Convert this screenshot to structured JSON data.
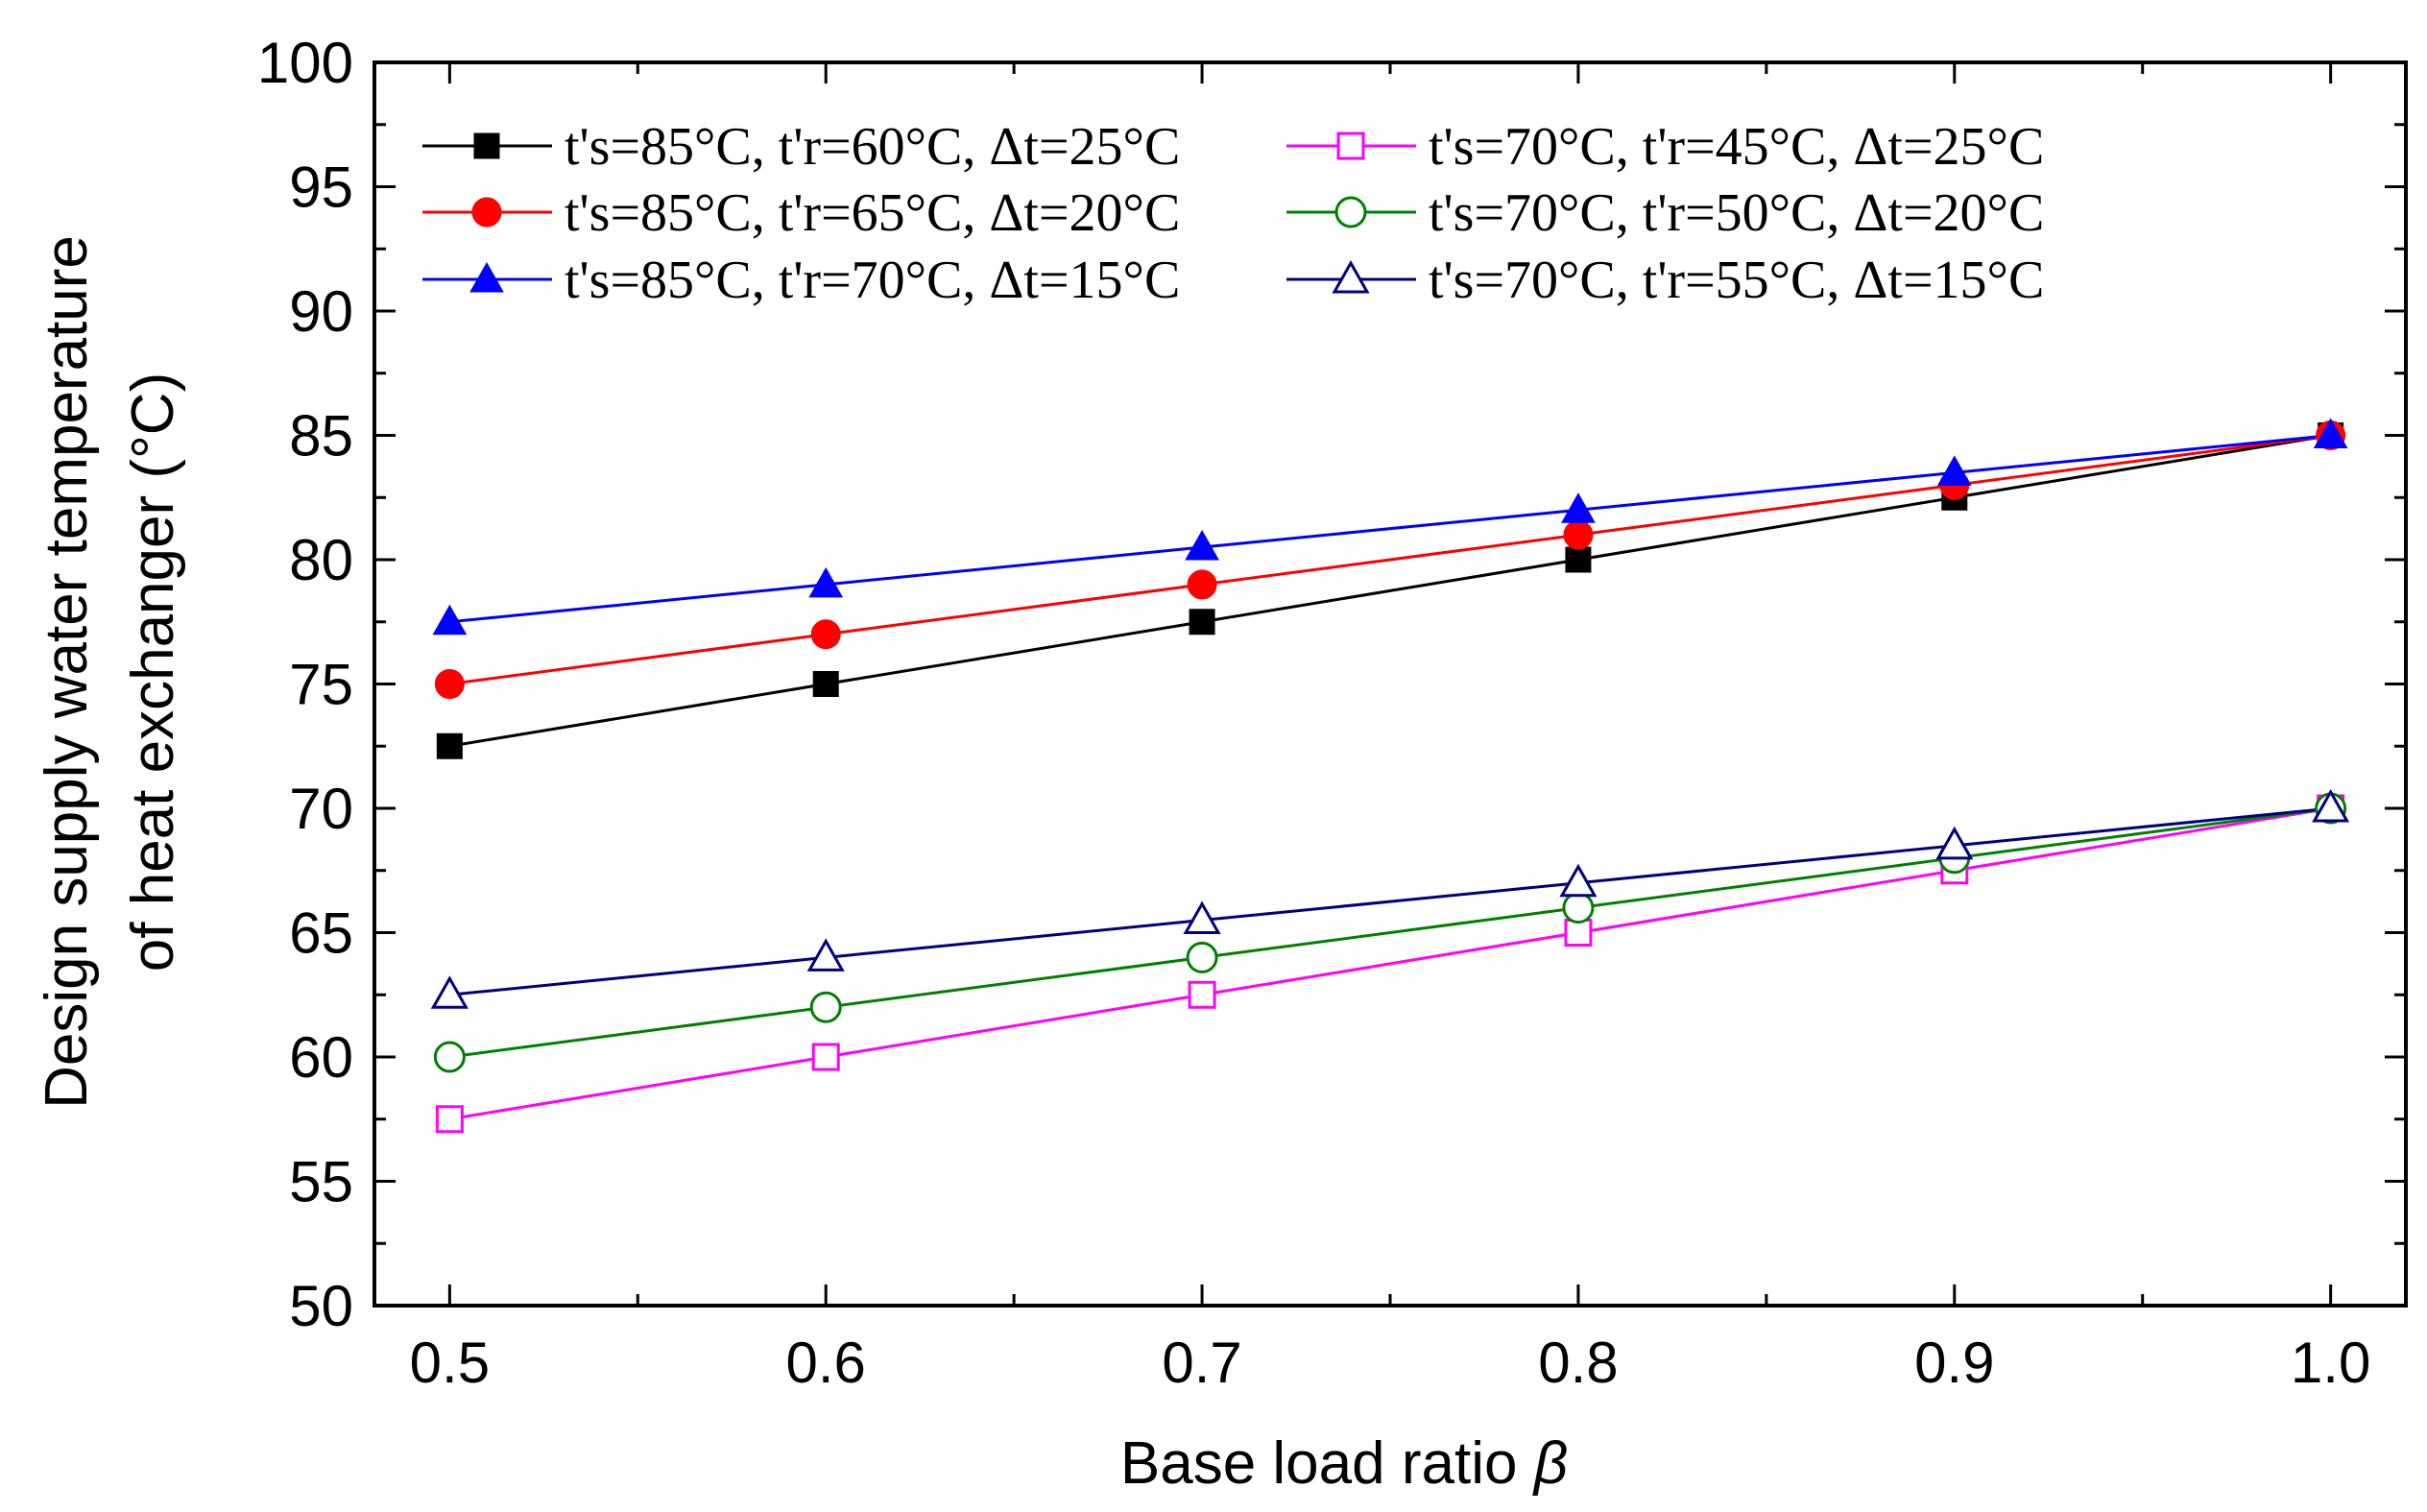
{
  "chart_data": {
    "type": "line",
    "xlabel": "Base load ratio",
    "xlabel_symbol": "β",
    "ylabel_line1": "Design supply water temperature",
    "ylabel_line2": "of heat exchanger (°C)",
    "xlim": [
      0.48,
      1.02
    ],
    "ylim": [
      50,
      100
    ],
    "x_ticks": [
      "0.5",
      "0.6",
      "0.7",
      "0.8",
      "0.9",
      "1.0"
    ],
    "x_tick_values": [
      0.5,
      0.6,
      0.7,
      0.8,
      0.9,
      1.0
    ],
    "y_ticks": [
      "50",
      "55",
      "60",
      "65",
      "70",
      "75",
      "80",
      "85",
      "90",
      "95",
      "100"
    ],
    "y_tick_values": [
      50,
      55,
      60,
      65,
      70,
      75,
      80,
      85,
      90,
      95,
      100
    ],
    "grid": false,
    "legend_position": "top",
    "x": [
      0.5,
      0.6,
      0.7,
      0.8,
      0.9,
      1.0
    ],
    "series": [
      {
        "name": "t's=85°C, t'r=60°C, Δt=25°C",
        "color": "#000000",
        "marker": "square",
        "filled": true,
        "values": [
          72.5,
          75,
          77.5,
          80,
          82.5,
          85
        ]
      },
      {
        "name": "t's=85°C, t'r=65°C, Δt=20°C",
        "color": "#ff0000",
        "marker": "circle",
        "filled": true,
        "values": [
          75,
          77,
          79,
          81,
          83,
          85
        ]
      },
      {
        "name": "t's=85°C, t'r=70°C, Δt=15°C",
        "color": "#0000ff",
        "marker": "triangle",
        "filled": true,
        "values": [
          77.5,
          79,
          80.5,
          82,
          83.5,
          85
        ]
      },
      {
        "name": "t's=70°C, t'r=45°C, Δt=25°C",
        "color": "#ff00ff",
        "marker": "square",
        "filled": false,
        "values": [
          57.5,
          60,
          62.5,
          65,
          67.5,
          70
        ]
      },
      {
        "name": "t's=70°C, t'r=50°C, Δt=20°C",
        "color": "#008000",
        "marker": "circle",
        "filled": false,
        "values": [
          60,
          62,
          64,
          66,
          68,
          70
        ]
      },
      {
        "name": "t's=70°C, t'r=55°C, Δt=15°C",
        "color": "#000080",
        "marker": "triangle",
        "filled": false,
        "values": [
          62.5,
          64,
          65.5,
          67,
          68.5,
          70
        ]
      }
    ]
  }
}
